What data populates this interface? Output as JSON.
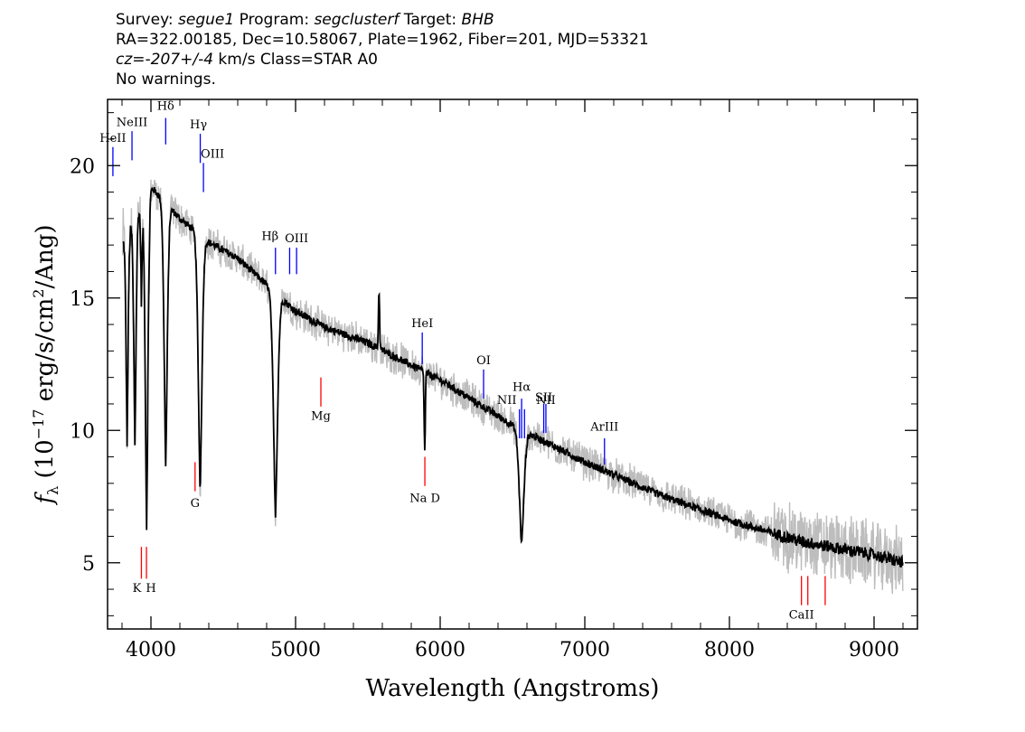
{
  "header": {
    "line1": {
      "survey_label": "Survey: ",
      "survey": "segue1",
      "program_label": " Program: ",
      "program": "segclusterf",
      "target_label": " Target: ",
      "target": "BHB"
    },
    "line2": "RA=322.00185, Dec=10.58067, Plate=1962, Fiber=201, MJD=53321",
    "line3": {
      "cz_label": "cz=",
      "cz_value": "-207+/-4",
      "cz_unit": " km/s Class=STAR A0"
    },
    "line4": "No warnings."
  },
  "chart_data": {
    "type": "line",
    "xlabel": "Wavelength (Angstroms)",
    "ylabel_parts": {
      "f": "f",
      "sub": "λ",
      "open": " (10",
      "exp": "−17",
      "mid": " erg/s/cm",
      "exp2": "2",
      "close": "/Ang)"
    },
    "xlim": [
      3700,
      9300
    ],
    "ylim": [
      2.5,
      22.5
    ],
    "x_ticks": [
      4000,
      5000,
      6000,
      7000,
      8000,
      9000
    ],
    "y_ticks": [
      5,
      10,
      15,
      20
    ],
    "continuum_points": [
      [
        3800,
        17.0
      ],
      [
        4000,
        19.2
      ],
      [
        4200,
        18.0
      ],
      [
        4400,
        17.1
      ],
      [
        4600,
        16.5
      ],
      [
        4800,
        15.5
      ],
      [
        5000,
        14.5
      ],
      [
        5200,
        13.9
      ],
      [
        5500,
        13.3
      ],
      [
        6000,
        11.9
      ],
      [
        6500,
        10.2
      ],
      [
        7000,
        8.8
      ],
      [
        7500,
        7.6
      ],
      [
        8000,
        6.6
      ],
      [
        8500,
        5.8
      ],
      [
        9000,
        5.3
      ],
      [
        9200,
        5.0
      ]
    ],
    "absorption_lines": [
      {
        "wave": 3835,
        "depth": 7.8,
        "width": 9
      },
      {
        "wave": 3889,
        "depth": 8.5,
        "width": 10
      },
      {
        "wave": 3934,
        "depth": 3.5,
        "width": 6
      },
      {
        "wave": 3970,
        "depth": 12.5,
        "width": 12
      },
      {
        "wave": 4102,
        "depth": 10.0,
        "width": 14
      },
      {
        "wave": 4340,
        "depth": 9.8,
        "width": 16
      },
      {
        "wave": 4861,
        "depth": 8.5,
        "width": 18
      },
      {
        "wave": 6563,
        "depth": 4.4,
        "width": 20
      }
    ],
    "emission_features": [
      {
        "wave": 5577,
        "height": 2.2,
        "width": 4
      },
      {
        "wave": 5893,
        "depth": 3.0,
        "width": 4
      }
    ],
    "line_markers": [
      {
        "label": "HeII",
        "wave": 3737,
        "y1": 19.6,
        "y2": 20.7,
        "color": "#0000ff",
        "label_y": 20.9,
        "label_dx": 0
      },
      {
        "label": "NeIII",
        "wave": 3869,
        "y1": 20.2,
        "y2": 21.3,
        "color": "#0000ff",
        "label_y": 21.5,
        "label_dx": 0
      },
      {
        "label": "Hδ",
        "wave": 4102,
        "y1": 20.8,
        "y2": 21.8,
        "color": "#0000ff",
        "label_y": 22.1,
        "label_dx": 0
      },
      {
        "label": "Hγ",
        "wave": 4341,
        "y1": 20.1,
        "y2": 21.2,
        "color": "#0000ff",
        "label_y": 21.4,
        "label_dx": -2
      },
      {
        "label": "OIII",
        "wave": 4363,
        "y1": 19.0,
        "y2": 20.1,
        "color": "#0000ff",
        "label_y": 20.3,
        "label_dx": 10
      },
      {
        "label": "Hβ",
        "wave": 4861,
        "y1": 15.9,
        "y2": 16.9,
        "color": "#0000ff",
        "label_y": 17.2,
        "label_dx": -6
      },
      {
        "label": "OIII",
        "wave": 4959,
        "y1": 15.9,
        "y2": 16.9,
        "color": "#0000ff",
        "label_y": null,
        "label_dx": 0
      },
      {
        "label": "OIII",
        "wave": 5007,
        "y1": 15.9,
        "y2": 16.9,
        "color": "#0000ff",
        "label_y": 17.1,
        "label_dx": 0
      },
      {
        "label": "HeI",
        "wave": 5876,
        "y1": 12.5,
        "y2": 13.7,
        "color": "#0000ff",
        "label_y": 13.9,
        "label_dx": 0
      },
      {
        "label": "OI",
        "wave": 6300,
        "y1": 11.2,
        "y2": 12.3,
        "color": "#0000ff",
        "label_y": 12.5,
        "label_dx": 0
      },
      {
        "label": "NII",
        "wave": 6548,
        "y1": 9.7,
        "y2": 10.8,
        "color": "#0000ff",
        "label_y": 11.0,
        "label_dx": -14
      },
      {
        "label": "Hα",
        "wave": 6563,
        "y1": 9.7,
        "y2": 11.2,
        "color": "#0000ff",
        "label_y": 11.5,
        "label_dx": 0
      },
      {
        "label": "NII",
        "wave": 6583,
        "y1": 9.7,
        "y2": 10.8,
        "color": "#0000ff",
        "label_y": null,
        "label_dx": 0
      },
      {
        "label": "SII",
        "wave": 6716,
        "y1": 9.9,
        "y2": 11.0,
        "color": "#0000ff",
        "label_y": 11.1,
        "label_dx": 0
      },
      {
        "label": "NII",
        "wave": 6731,
        "y1": 9.9,
        "y2": 11.0,
        "color": "#0000ff",
        "label_y": 11.0,
        "label_dx": 0
      },
      {
        "label": "ArIII",
        "wave": 7136,
        "y1": 8.7,
        "y2": 9.7,
        "color": "#0000ff",
        "label_y": 10.0,
        "label_dx": 0
      },
      {
        "label": "K",
        "wave": 3934,
        "y1": 4.4,
        "y2": 5.6,
        "color": "#ff0000",
        "label_y": 3.9,
        "label_dx": -5
      },
      {
        "label": "H",
        "wave": 3969,
        "y1": 4.4,
        "y2": 5.6,
        "color": "#ff0000",
        "label_y": 3.9,
        "label_dx": 5
      },
      {
        "label": "G",
        "wave": 4305,
        "y1": 7.7,
        "y2": 8.8,
        "color": "#ff0000",
        "label_y": 7.1,
        "label_dx": 0
      },
      {
        "label": "Mg",
        "wave": 5175,
        "y1": 10.9,
        "y2": 12.0,
        "color": "#ff0000",
        "label_y": 10.4,
        "label_dx": 0
      },
      {
        "label": "Na D",
        "wave": 5894,
        "y1": 7.9,
        "y2": 9.0,
        "color": "#ff0000",
        "label_y": 7.3,
        "label_dx": 0
      },
      {
        "label": "CaII",
        "wave": 8498,
        "y1": 3.4,
        "y2": 4.5,
        "color": "#ff0000",
        "label_y": 2.9,
        "label_dx": 0
      },
      {
        "label": "CaII",
        "wave": 8542,
        "y1": 3.4,
        "y2": 4.5,
        "color": "#ff0000",
        "label_y": null,
        "label_dx": 0
      },
      {
        "label": "CaII",
        "wave": 8662,
        "y1": 3.4,
        "y2": 4.5,
        "color": "#ff0000",
        "label_y": null,
        "label_dx": 0
      }
    ],
    "colors": {
      "spectrum": "#000000",
      "noise": "#bdbdbd",
      "emission_marker": "#0000ff",
      "absorption_marker": "#ff0000"
    }
  }
}
